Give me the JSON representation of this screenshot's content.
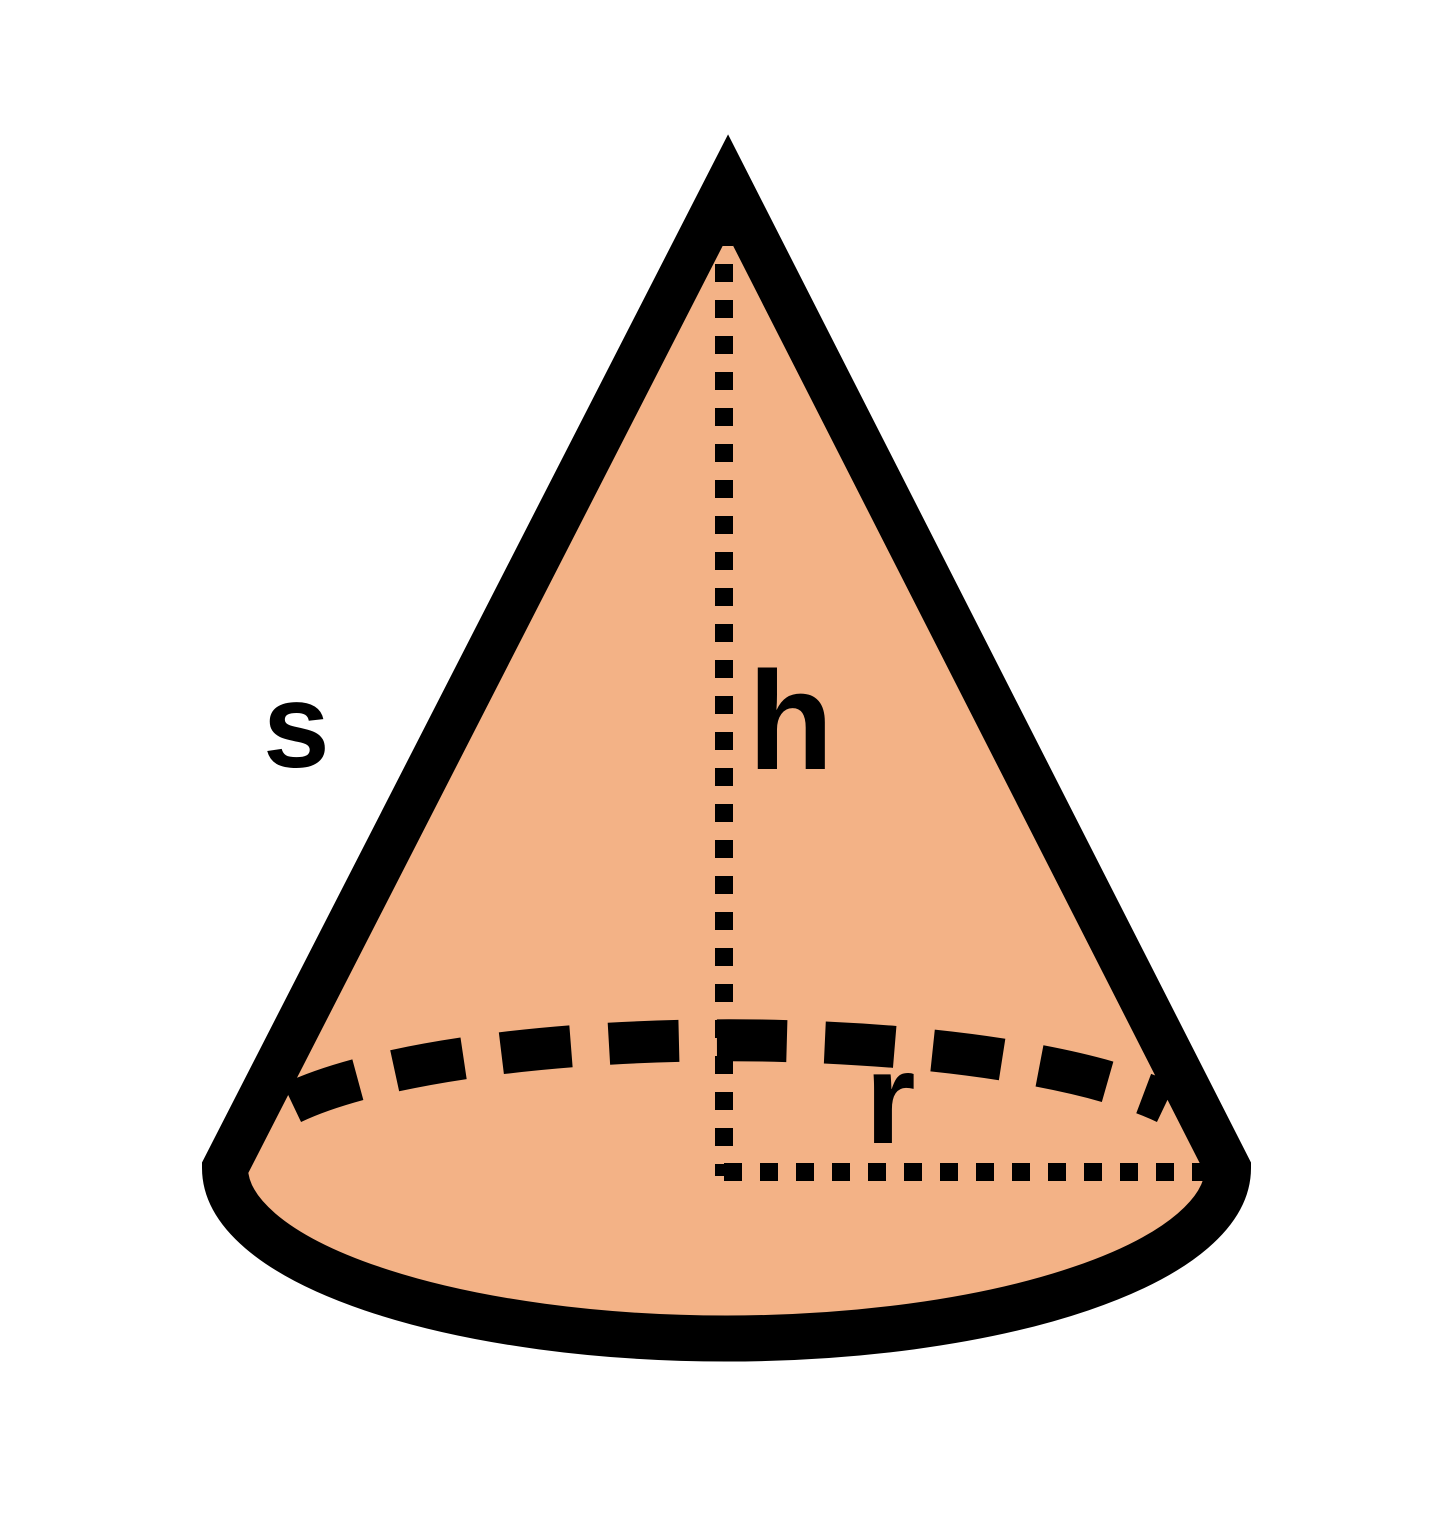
{
  "diagram": {
    "labels": {
      "slant_height": "s",
      "height": "h",
      "radius": "r"
    },
    "colors": {
      "fill": "#f3b286",
      "outline": "#000000",
      "background": "#ffffff"
    }
  }
}
